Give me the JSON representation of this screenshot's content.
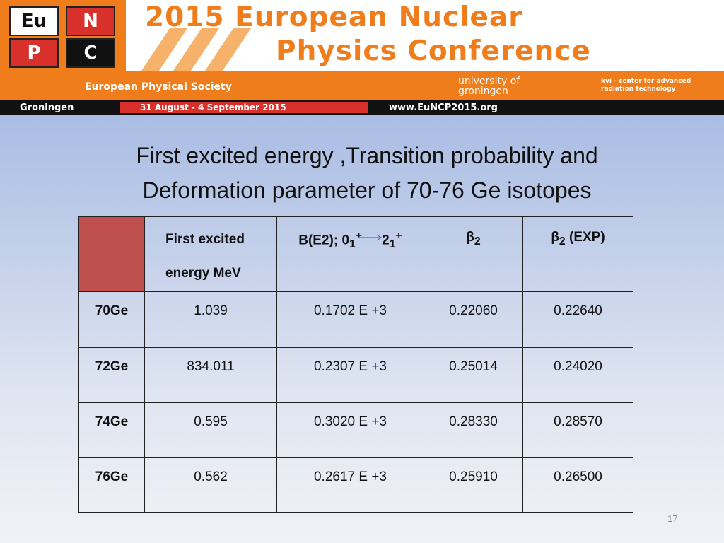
{
  "banner": {
    "logos": [
      "Eu",
      "N",
      "P",
      "C"
    ],
    "title_lines": [
      "2015 European Nuclear",
      "Physics Conference"
    ],
    "society": "European Physical Society",
    "university": [
      "university of",
      "groningen"
    ],
    "kvi": [
      "kvi - center for advanced",
      "radiation technology"
    ],
    "city": "Groningen",
    "dates": "31 August - 4 September 2015",
    "website": "www.EuNCP2015.org"
  },
  "slide": {
    "title_lines": [
      "First excited energy ,Transition probability and",
      "Deformation parameter of 70-76 Ge isotopes"
    ],
    "page_number": "17"
  },
  "table": {
    "header": {
      "energy": [
        "First excited",
        "energy MeV"
      ],
      "be2": {
        "prefix": "B(E2); 0",
        "sub1": "1",
        "sup1": "+",
        "mid": "2",
        "sub2": "1",
        "sup2": "+"
      },
      "beta": {
        "symbol": "β",
        "sub": "2"
      },
      "beta_exp": {
        "symbol": "β",
        "sub": "2",
        "suffix": " (EXP)"
      }
    },
    "rows": [
      [
        "70Ge",
        "1.039",
        "0.1702 E +3",
        "0.22060",
        "0.22640"
      ],
      [
        "72Ge",
        "834.011",
        "0.2307 E +3",
        "0.25014",
        "0.24020"
      ],
      [
        "74Ge",
        "0.595",
        "0.3020 E +3",
        "0.28330",
        "0.28570"
      ],
      [
        "76Ge",
        "0.562",
        "0.2617 E +3",
        "0.25910",
        "0.26500"
      ]
    ]
  }
}
